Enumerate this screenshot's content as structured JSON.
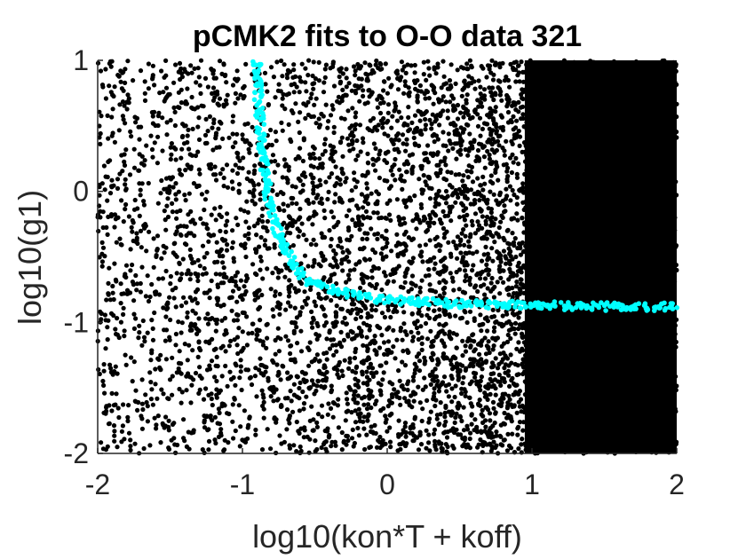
{
  "chart_data": {
    "type": "scatter",
    "title": "pCMK2 fits to O-O data 321",
    "xlabel": "log10(kon*T + koff)",
    "ylabel": "log10(g1)",
    "xlim": [
      -2,
      2
    ],
    "ylim": [
      -2,
      1
    ],
    "xticks": [
      -2,
      -1,
      0,
      1,
      2
    ],
    "xtick_labels": [
      "-2",
      "-1",
      "0",
      "1",
      "2"
    ],
    "yticks": [
      -2,
      -1,
      0,
      1
    ],
    "ytick_labels": [
      "-2",
      "-1",
      "0",
      "1"
    ],
    "grid": false,
    "legend": "none",
    "series": [
      {
        "description_role": "all sampled parameter sets",
        "color": "#000000",
        "density_profile": {
          "x": [
            -2.0,
            -1.0,
            0.0,
            0.5,
            1.0,
            2.0
          ],
          "relative_density": [
            0.35,
            0.45,
            0.6,
            0.8,
            1.0,
            1.0
          ]
        }
      },
      {
        "description_role": "best-fit parameter sets",
        "color": "#00ffff",
        "curve_points": [
          {
            "x": -0.9,
            "y": 1.0
          },
          {
            "x": -0.89,
            "y": 0.7
          },
          {
            "x": -0.87,
            "y": 0.4
          },
          {
            "x": -0.84,
            "y": 0.1
          },
          {
            "x": -0.8,
            "y": -0.15
          },
          {
            "x": -0.74,
            "y": -0.35
          },
          {
            "x": -0.65,
            "y": -0.55
          },
          {
            "x": -0.55,
            "y": -0.68
          },
          {
            "x": -0.4,
            "y": -0.75
          },
          {
            "x": -0.2,
            "y": -0.8
          },
          {
            "x": 0.0,
            "y": -0.83
          },
          {
            "x": 0.5,
            "y": -0.86
          },
          {
            "x": 1.0,
            "y": -0.87
          },
          {
            "x": 1.5,
            "y": -0.88
          },
          {
            "x": 2.0,
            "y": -0.88
          }
        ]
      }
    ]
  }
}
